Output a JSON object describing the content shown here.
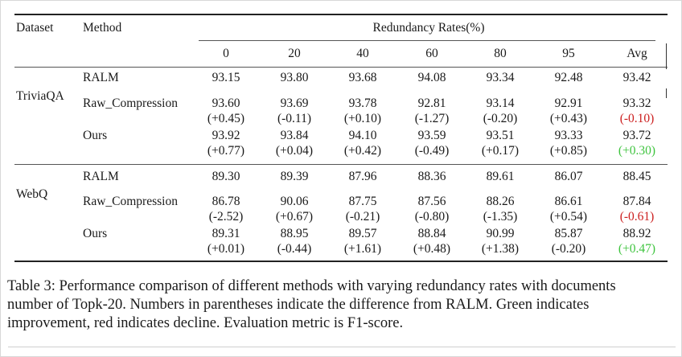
{
  "header": {
    "dataset": "Dataset",
    "method": "Method",
    "group": "Redundancy Rates(%)",
    "columns": [
      "0",
      "20",
      "40",
      "60",
      "80",
      "95",
      "Avg"
    ]
  },
  "groups": [
    {
      "dataset": "TriviaQA",
      "rows": [
        {
          "method": "RALM",
          "values": [
            "93.15",
            "93.80",
            "93.68",
            "94.08",
            "93.34",
            "92.48",
            "93.42"
          ]
        },
        {
          "method": "Raw_Compression",
          "values": [
            "93.60",
            "93.69",
            "93.78",
            "92.81",
            "93.14",
            "92.91",
            "93.32"
          ],
          "diffs": [
            "(+0.45)",
            "(-0.11)",
            "(+0.10)",
            "(-1.27)",
            "(-0.20)",
            "(+0.43)",
            "(-0.10)"
          ]
        },
        {
          "method": "Ours",
          "values": [
            "93.92",
            "93.84",
            "94.10",
            "93.59",
            "93.51",
            "93.33",
            "93.72"
          ],
          "diffs": [
            "(+0.77)",
            "(+0.04)",
            "(+0.42)",
            "(-0.49)",
            "(+0.17)",
            "(+0.85)",
            "(+0.30)"
          ]
        }
      ]
    },
    {
      "dataset": "WebQ",
      "rows": [
        {
          "method": "RALM",
          "values": [
            "89.30",
            "89.39",
            "87.96",
            "88.36",
            "89.61",
            "86.07",
            "88.45"
          ]
        },
        {
          "method": "Raw_Compression",
          "values": [
            "86.78",
            "90.06",
            "87.75",
            "87.56",
            "88.26",
            "86.61",
            "87.84"
          ],
          "diffs": [
            "(-2.52)",
            "(+0.67)",
            "(-0.21)",
            "(-0.80)",
            "(-1.35)",
            "(+0.54)",
            "(-0.61)"
          ]
        },
        {
          "method": "Ours",
          "values": [
            "89.31",
            "88.95",
            "89.57",
            "88.84",
            "90.99",
            "85.87",
            "88.92"
          ],
          "diffs": [
            "(+0.01)",
            "(-0.44)",
            "(+1.61)",
            "(+0.48)",
            "(+1.38)",
            "(-0.20)",
            "(+0.47)"
          ]
        }
      ]
    }
  ],
  "caption": {
    "line1": "Table 3: Performance comparison of different methods with varying redundancy rates with documents",
    "line2": "number of Topk-20. Numbers in parentheses indicate the difference from RALM. Green indicates",
    "line3": "improvement, red indicates decline. Evaluation metric is F1-score."
  },
  "colors": {
    "improvement": "#3fc43f",
    "decline": "#cc1f1f"
  }
}
